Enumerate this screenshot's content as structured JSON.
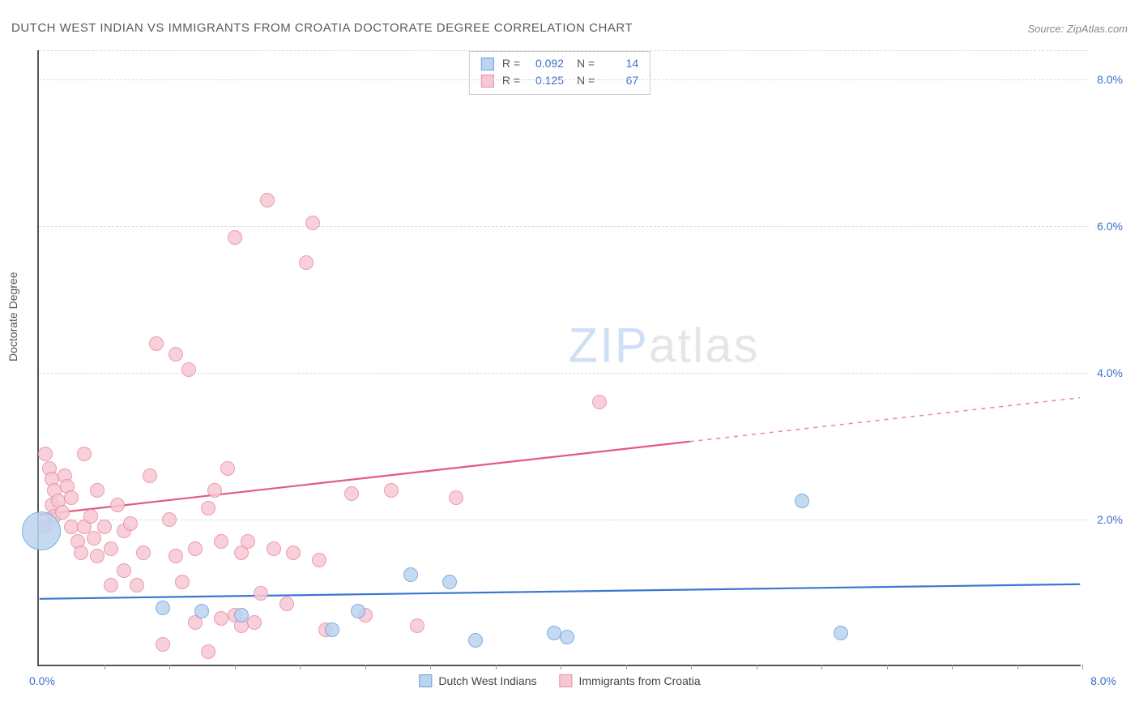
{
  "title": "DUTCH WEST INDIAN VS IMMIGRANTS FROM CROATIA DOCTORATE DEGREE CORRELATION CHART",
  "source": "Source: ZipAtlas.com",
  "y_axis_label": "Doctorate Degree",
  "watermark": {
    "part1": "ZIP",
    "part2": "atlas"
  },
  "chart": {
    "type": "scatter-with-trend",
    "background_color": "#ffffff",
    "grid_color": "#d8d8d8",
    "axis_color": "#555555",
    "label_color": "#3b6fc9",
    "xlim": [
      0,
      8
    ],
    "ylim": [
      0,
      8.4
    ],
    "y_ticks": [
      2,
      4,
      6,
      8
    ],
    "y_tick_labels": [
      "2.0%",
      "4.0%",
      "6.0%",
      "8.0%"
    ],
    "x_origin_label": "0.0%",
    "x_max_label": "8.0%",
    "x_minor_tick_step": 0.5,
    "series": [
      {
        "id": "blue",
        "name": "Dutch West Indians",
        "fill": "#bcd4ef",
        "stroke": "#6aa0e0",
        "line_color": "#3b76d1",
        "R": "0.092",
        "N": "14",
        "marker_radius": 9,
        "trend": {
          "x0": 0,
          "y0": 0.9,
          "x1": 8,
          "y1": 1.1,
          "solid_until_x": 8
        },
        "points": [
          {
            "x": 0.02,
            "y": 1.85,
            "r": 24
          },
          {
            "x": 0.95,
            "y": 0.8
          },
          {
            "x": 1.25,
            "y": 0.75
          },
          {
            "x": 1.55,
            "y": 0.7
          },
          {
            "x": 2.25,
            "y": 0.5
          },
          {
            "x": 2.45,
            "y": 0.75
          },
          {
            "x": 2.85,
            "y": 1.25
          },
          {
            "x": 3.15,
            "y": 1.15
          },
          {
            "x": 3.35,
            "y": 0.35
          },
          {
            "x": 3.95,
            "y": 0.45
          },
          {
            "x": 4.05,
            "y": 0.4
          },
          {
            "x": 5.85,
            "y": 2.25
          },
          {
            "x": 6.15,
            "y": 0.45
          }
        ]
      },
      {
        "id": "pink",
        "name": "Immigrants from Croatia",
        "fill": "#f6c8d4",
        "stroke": "#e88aa5",
        "line_color": "#e15a84",
        "R": "0.125",
        "N": "67",
        "marker_radius": 9,
        "trend": {
          "x0": 0,
          "y0": 2.05,
          "x1": 8,
          "y1": 3.65,
          "solid_until_x": 5.0
        },
        "points": [
          {
            "x": 0.05,
            "y": 2.9
          },
          {
            "x": 0.08,
            "y": 2.7
          },
          {
            "x": 0.1,
            "y": 2.55
          },
          {
            "x": 0.12,
            "y": 2.4
          },
          {
            "x": 0.1,
            "y": 2.2
          },
          {
            "x": 0.12,
            "y": 2.05
          },
          {
            "x": 0.05,
            "y": 1.9
          },
          {
            "x": 0.15,
            "y": 2.25
          },
          {
            "x": 0.18,
            "y": 2.1
          },
          {
            "x": 0.2,
            "y": 2.6
          },
          {
            "x": 0.22,
            "y": 2.45
          },
          {
            "x": 0.25,
            "y": 2.3
          },
          {
            "x": 0.25,
            "y": 1.9
          },
          {
            "x": 0.3,
            "y": 1.7
          },
          {
            "x": 0.32,
            "y": 1.55
          },
          {
            "x": 0.35,
            "y": 1.9
          },
          {
            "x": 0.35,
            "y": 2.9
          },
          {
            "x": 0.4,
            "y": 2.05
          },
          {
            "x": 0.42,
            "y": 1.75
          },
          {
            "x": 0.45,
            "y": 1.5
          },
          {
            "x": 0.45,
            "y": 2.4
          },
          {
            "x": 0.5,
            "y": 1.9
          },
          {
            "x": 0.55,
            "y": 1.6
          },
          {
            "x": 0.55,
            "y": 1.1
          },
          {
            "x": 0.6,
            "y": 2.2
          },
          {
            "x": 0.65,
            "y": 1.85
          },
          {
            "x": 0.65,
            "y": 1.3
          },
          {
            "x": 0.7,
            "y": 1.95
          },
          {
            "x": 0.75,
            "y": 1.1
          },
          {
            "x": 0.8,
            "y": 1.55
          },
          {
            "x": 0.85,
            "y": 2.6
          },
          {
            "x": 0.9,
            "y": 4.4
          },
          {
            "x": 0.95,
            "y": 0.3
          },
          {
            "x": 1.0,
            "y": 2.0
          },
          {
            "x": 1.05,
            "y": 1.5
          },
          {
            "x": 1.05,
            "y": 4.25
          },
          {
            "x": 1.1,
            "y": 1.15
          },
          {
            "x": 1.15,
            "y": 4.05
          },
          {
            "x": 1.2,
            "y": 0.6
          },
          {
            "x": 1.2,
            "y": 1.6
          },
          {
            "x": 1.3,
            "y": 2.15
          },
          {
            "x": 1.3,
            "y": 0.2
          },
          {
            "x": 1.35,
            "y": 2.4
          },
          {
            "x": 1.4,
            "y": 0.65
          },
          {
            "x": 1.4,
            "y": 1.7
          },
          {
            "x": 1.45,
            "y": 2.7
          },
          {
            "x": 1.5,
            "y": 0.7
          },
          {
            "x": 1.5,
            "y": 5.85
          },
          {
            "x": 1.55,
            "y": 1.55
          },
          {
            "x": 1.55,
            "y": 0.55
          },
          {
            "x": 1.6,
            "y": 1.7
          },
          {
            "x": 1.65,
            "y": 0.6
          },
          {
            "x": 1.7,
            "y": 1.0
          },
          {
            "x": 1.75,
            "y": 6.35
          },
          {
            "x": 1.8,
            "y": 1.6
          },
          {
            "x": 1.9,
            "y": 0.85
          },
          {
            "x": 1.95,
            "y": 1.55
          },
          {
            "x": 2.05,
            "y": 5.5
          },
          {
            "x": 2.1,
            "y": 6.05
          },
          {
            "x": 2.15,
            "y": 1.45
          },
          {
            "x": 2.2,
            "y": 0.5
          },
          {
            "x": 2.4,
            "y": 2.35
          },
          {
            "x": 2.5,
            "y": 0.7
          },
          {
            "x": 2.7,
            "y": 2.4
          },
          {
            "x": 2.9,
            "y": 0.55
          },
          {
            "x": 3.2,
            "y": 2.3
          },
          {
            "x": 4.3,
            "y": 3.6
          }
        ]
      }
    ]
  },
  "legend_bottom": [
    {
      "label": "Dutch West Indians",
      "fill": "#bcd4ef",
      "stroke": "#6aa0e0"
    },
    {
      "label": "Immigrants from Croatia",
      "fill": "#f6c8d4",
      "stroke": "#e88aa5"
    }
  ]
}
